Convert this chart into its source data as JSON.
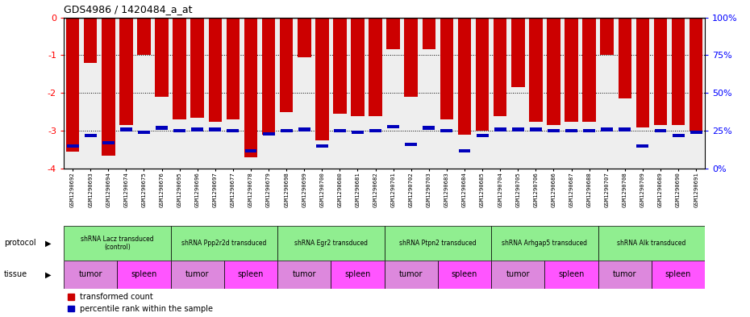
{
  "title": "GDS4986 / 1420484_a_at",
  "samples": [
    "GSM1290692",
    "GSM1290693",
    "GSM1290694",
    "GSM1290674",
    "GSM1290675",
    "GSM1290676",
    "GSM1290695",
    "GSM1290696",
    "GSM1290697",
    "GSM1290677",
    "GSM1290678",
    "GSM1290679",
    "GSM1290698",
    "GSM1290699",
    "GSM1290700",
    "GSM1290680",
    "GSM1290681",
    "GSM1290682",
    "GSM1290701",
    "GSM1290702",
    "GSM1290703",
    "GSM1290683",
    "GSM1290684",
    "GSM1290685",
    "GSM1290704",
    "GSM1290705",
    "GSM1290706",
    "GSM1290686",
    "GSM1290687",
    "GSM1290688",
    "GSM1290707",
    "GSM1290708",
    "GSM1290709",
    "GSM1290689",
    "GSM1290690",
    "GSM1290691"
  ],
  "red_values": [
    -3.55,
    -1.2,
    -3.65,
    -2.85,
    -1.0,
    -2.1,
    -2.7,
    -2.65,
    -2.75,
    -2.7,
    -3.7,
    -3.1,
    -2.5,
    -1.05,
    -3.25,
    -2.55,
    -2.6,
    -2.6,
    -0.85,
    -2.1,
    -0.85,
    -2.7,
    -3.1,
    -3.0,
    -2.6,
    -1.85,
    -2.75,
    -2.85,
    -2.75,
    -2.75,
    -1.0,
    -2.15,
    -2.9,
    -2.85,
    -2.85,
    -3.0
  ],
  "blue_percentiles": [
    15,
    22,
    17,
    26,
    24,
    27,
    25,
    26,
    26,
    25,
    12,
    23,
    25,
    26,
    15,
    25,
    24,
    25,
    28,
    16,
    27,
    25,
    12,
    22,
    26,
    26,
    26,
    25,
    25,
    25,
    26,
    26,
    15,
    25,
    22,
    24
  ],
  "protocols": [
    {
      "label": "shRNA Lacz transduced\n(control)",
      "start": 0,
      "end": 6,
      "color": "#90EE90"
    },
    {
      "label": "shRNA Ppp2r2d transduced",
      "start": 6,
      "end": 12,
      "color": "#90EE90"
    },
    {
      "label": "shRNA Egr2 transduced",
      "start": 12,
      "end": 18,
      "color": "#90EE90"
    },
    {
      "label": "shRNA Ptpn2 transduced",
      "start": 18,
      "end": 24,
      "color": "#90EE90"
    },
    {
      "label": "shRNA Arhgap5 transduced",
      "start": 24,
      "end": 30,
      "color": "#90EE90"
    },
    {
      "label": "shRNA Alk transduced",
      "start": 30,
      "end": 36,
      "color": "#90EE90"
    }
  ],
  "tissues": [
    {
      "label": "tumor",
      "start": 0,
      "end": 3
    },
    {
      "label": "spleen",
      "start": 3,
      "end": 6
    },
    {
      "label": "tumor",
      "start": 6,
      "end": 9
    },
    {
      "label": "spleen",
      "start": 9,
      "end": 12
    },
    {
      "label": "tumor",
      "start": 12,
      "end": 15
    },
    {
      "label": "spleen",
      "start": 15,
      "end": 18
    },
    {
      "label": "tumor",
      "start": 18,
      "end": 21
    },
    {
      "label": "spleen",
      "start": 21,
      "end": 24
    },
    {
      "label": "tumor",
      "start": 24,
      "end": 27
    },
    {
      "label": "spleen",
      "start": 27,
      "end": 30
    },
    {
      "label": "tumor",
      "start": 30,
      "end": 33
    },
    {
      "label": "spleen",
      "start": 33,
      "end": 36
    }
  ],
  "ylim": [
    -4.0,
    0.0
  ],
  "yticks_left": [
    0,
    -1,
    -2,
    -3,
    -4
  ],
  "yticks_right": [
    100,
    75,
    50,
    25,
    0
  ],
  "bar_color": "#CC0000",
  "blue_color": "#0000BB",
  "tumor_color": "#DD88DD",
  "spleen_color": "#FF55FF",
  "protocol_color": "#90EE90"
}
